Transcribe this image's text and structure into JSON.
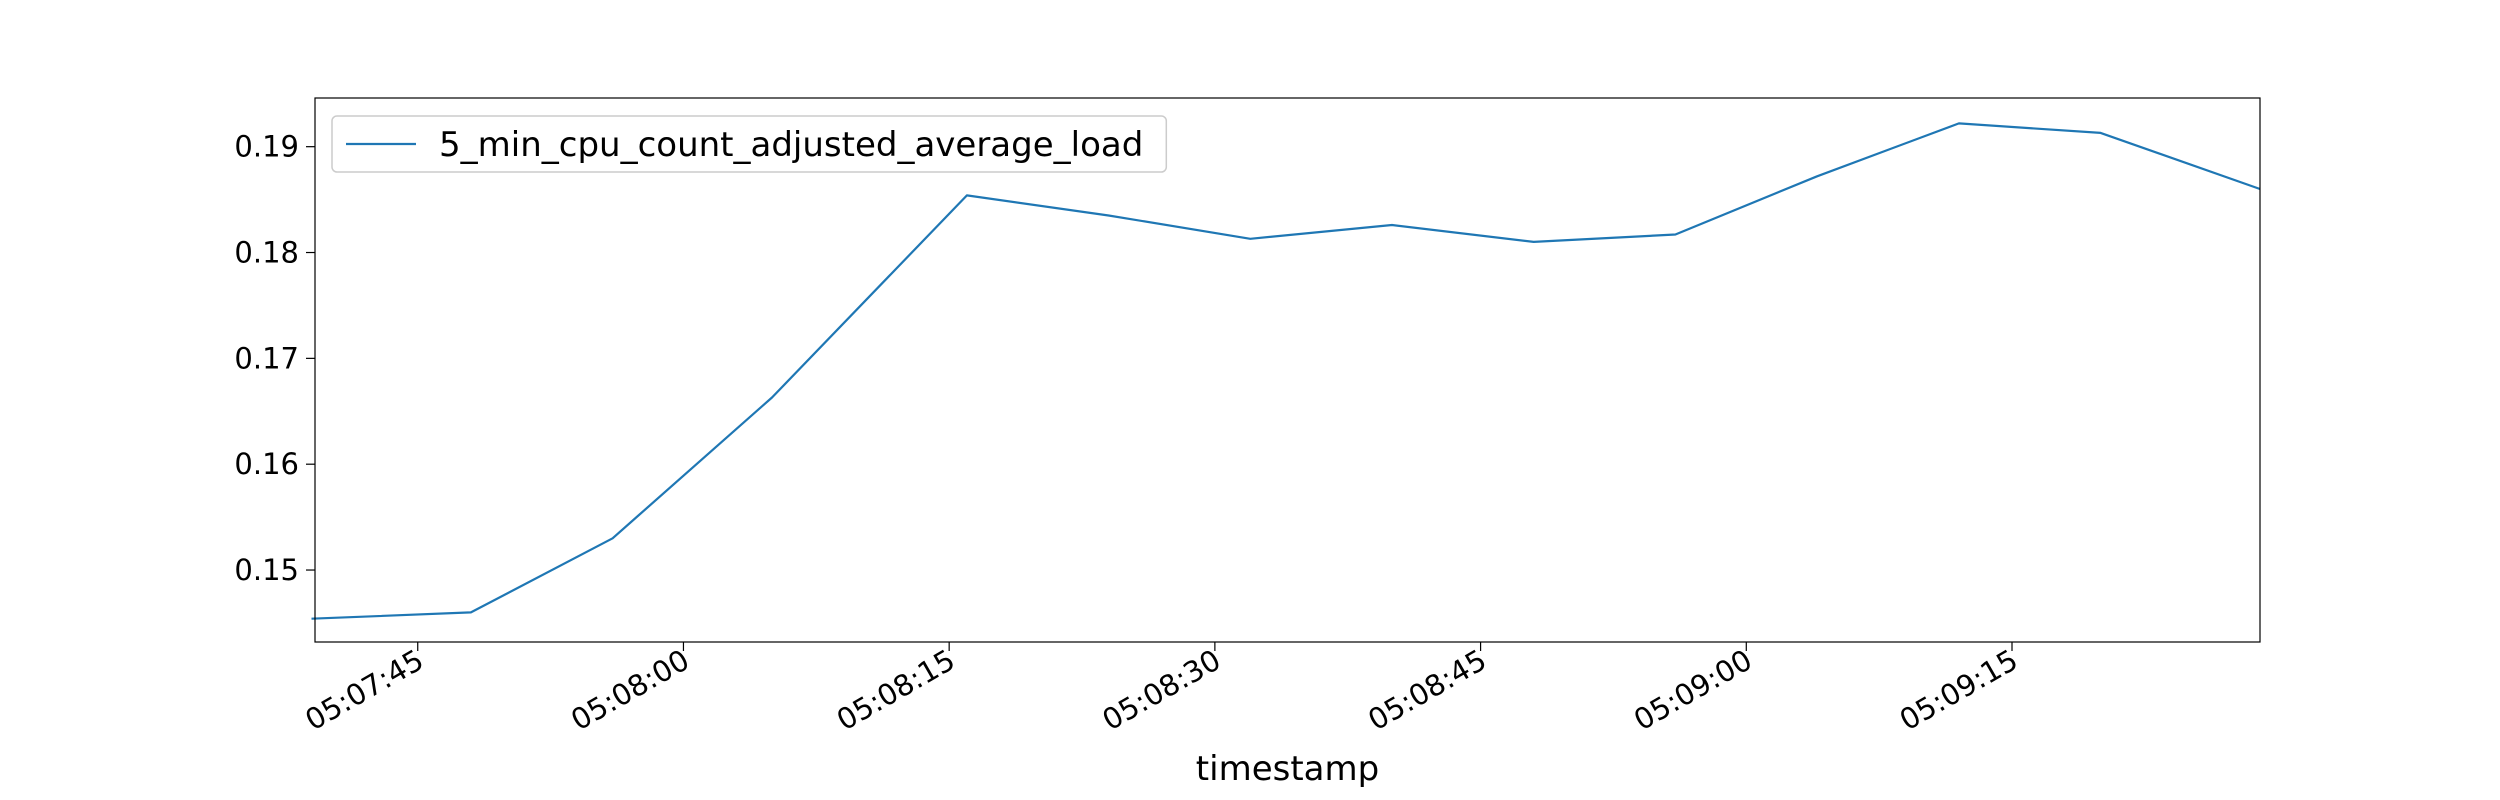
{
  "chart_data": {
    "type": "line",
    "title": "",
    "xlabel": "timestamp",
    "ylabel": "",
    "x_tick_labels": [
      "05:07:45",
      "05:08:00",
      "05:08:15",
      "05:08:30",
      "05:08:45",
      "05:09:00",
      "05:09:15"
    ],
    "x_tick_seconds": [
      465,
      480,
      495,
      510,
      525,
      540,
      555
    ],
    "xlim_seconds": [
      459.2,
      569.0
    ],
    "y_ticks": [
      0.15,
      0.16,
      0.17,
      0.18,
      0.19
    ],
    "y_tick_labels": [
      "0.15",
      "0.16",
      "0.17",
      "0.18",
      "0.19"
    ],
    "ylim": [
      0.1432,
      0.1946
    ],
    "legend": {
      "position": "upper left"
    },
    "grid": false,
    "series": [
      {
        "name": "5_min_cpu_count_adjusted_average_load",
        "color": "#1f77b4",
        "x": [
          "05:07:39",
          "05:07:48",
          "05:07:56",
          "05:08:05",
          "05:08:16",
          "05:08:24",
          "05:08:32",
          "05:08:40",
          "05:08:48",
          "05:08:56",
          "05:09:04",
          "05:09:12",
          "05:09:20",
          "05:09:29"
        ],
        "values": [
          0.1454,
          0.146,
          0.153,
          0.1663,
          0.1854,
          0.1835,
          0.1813,
          0.1826,
          0.181,
          0.1817,
          0.1872,
          0.1922,
          0.1913,
          0.186
        ]
      }
    ]
  }
}
